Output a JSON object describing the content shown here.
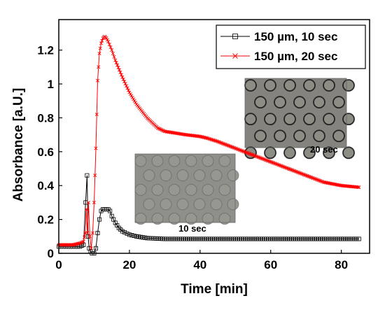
{
  "chart_data": {
    "type": "line",
    "title": "",
    "xlabel": "Time [min]",
    "ylabel": "Absorbance [a.U.]",
    "xlim": [
      0,
      88
    ],
    "ylim": [
      0,
      1.38
    ],
    "xticks": [
      0,
      20,
      40,
      60,
      80
    ],
    "yticks": [
      0,
      0.2,
      0.4,
      0.6,
      0.8,
      1,
      1.2
    ],
    "xtick_labels": [
      "0",
      "20",
      "40",
      "60",
      "80"
    ],
    "ytick_labels": [
      "0",
      "0.2",
      "0.4",
      "0.6",
      "0.8",
      "1",
      "1.2"
    ],
    "grid": false,
    "legend_position": "top-right",
    "series": [
      {
        "name": "150 µm, 10 sec",
        "color": "#000000",
        "marker": "square",
        "x": [
          0,
          2,
          4,
          6,
          7,
          7.6,
          8.0,
          8.3,
          8.6,
          9.0,
          9.4,
          10,
          10.5,
          11,
          11.5,
          12,
          12.5,
          13,
          13.5,
          14,
          14.5,
          15,
          16,
          17,
          18,
          20,
          22,
          25,
          30,
          40,
          50,
          60,
          70,
          80,
          85
        ],
        "y": [
          0.04,
          0.04,
          0.04,
          0.04,
          0.05,
          0.3,
          0.46,
          0.1,
          0.03,
          0.01,
          0.0,
          0.0,
          0.03,
          0.12,
          0.2,
          0.25,
          0.26,
          0.26,
          0.26,
          0.26,
          0.25,
          0.22,
          0.18,
          0.15,
          0.13,
          0.11,
          0.1,
          0.09,
          0.085,
          0.085,
          0.085,
          0.085,
          0.085,
          0.085,
          0.085
        ]
      },
      {
        "name": "150 µm, 20 sec",
        "color": "#ff0000",
        "marker": "x",
        "x": [
          0,
          2,
          4,
          6,
          7,
          7.5,
          7.8,
          8.1,
          8.4,
          8.8,
          9.2,
          9.6,
          10,
          10.5,
          11,
          11.5,
          12,
          12.5,
          13,
          13.5,
          14,
          15,
          16,
          18,
          20,
          22,
          25,
          28,
          30,
          33,
          36,
          40,
          42,
          45,
          50,
          55,
          60,
          65,
          70,
          75,
          80,
          85
        ],
        "y": [
          0.05,
          0.05,
          0.05,
          0.06,
          0.07,
          0.12,
          0.26,
          0.12,
          0.3,
          0.1,
          0.03,
          0.12,
          0.3,
          0.62,
          1.02,
          1.18,
          1.24,
          1.27,
          1.28,
          1.27,
          1.25,
          1.2,
          1.14,
          1.04,
          0.95,
          0.88,
          0.8,
          0.74,
          0.72,
          0.71,
          0.7,
          0.69,
          0.68,
          0.66,
          0.62,
          0.58,
          0.54,
          0.5,
          0.46,
          0.42,
          0.4,
          0.39
        ]
      }
    ],
    "insets": [
      {
        "caption": "20 sec",
        "dot_color": "#1a1a1a"
      },
      {
        "caption": "10 sec",
        "dot_color": "#5a5a5a"
      }
    ]
  }
}
